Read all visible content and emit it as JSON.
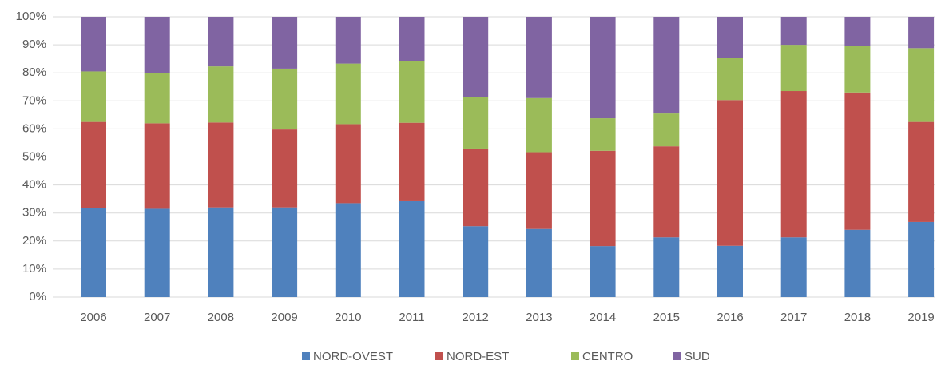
{
  "chart_data": {
    "type": "stacked_bar_100",
    "categories": [
      "2006",
      "2007",
      "2008",
      "2009",
      "2010",
      "2011",
      "2012",
      "2013",
      "2014",
      "2015",
      "2016",
      "2017",
      "2018",
      "2019"
    ],
    "series": [
      {
        "name": "NORD-OVEST",
        "color": "#4f81bd",
        "values": [
          31.8,
          31.5,
          32,
          32,
          33.5,
          34.2,
          25.3,
          24.3,
          18.2,
          21.3,
          18.3,
          21.3,
          24,
          26.8
        ]
      },
      {
        "name": "NORD-EST",
        "color": "#c0504d",
        "values": [
          30.7,
          30.5,
          30.3,
          27.8,
          28.2,
          28,
          27.7,
          27.4,
          34,
          32.5,
          52,
          52.2,
          49,
          35.7
        ]
      },
      {
        "name": "CENTRO",
        "color": "#9bbb59",
        "values": [
          18,
          18,
          20,
          21.7,
          21.6,
          22.1,
          18.3,
          19.3,
          11.6,
          11.7,
          15,
          16.5,
          16.5,
          26.3
        ]
      },
      {
        "name": "SUD",
        "color": "#8064a2",
        "values": [
          19.5,
          20,
          17.7,
          18.5,
          16.7,
          15.7,
          28.7,
          29,
          36.2,
          34.5,
          14.7,
          10,
          10.5,
          11.2
        ]
      }
    ],
    "ylim": [
      0,
      100
    ],
    "yticks": [
      {
        "value": 0,
        "label": "0%"
      },
      {
        "value": 10,
        "label": "10%"
      },
      {
        "value": 20,
        "label": "20%"
      },
      {
        "value": 30,
        "label": "30%"
      },
      {
        "value": 40,
        "label": "40%"
      },
      {
        "value": 50,
        "label": "50%"
      },
      {
        "value": 60,
        "label": "60%"
      },
      {
        "value": 70,
        "label": "70%"
      },
      {
        "value": 80,
        "label": "80%"
      },
      {
        "value": 90,
        "label": "90%"
      },
      {
        "value": 100,
        "label": "100%"
      }
    ],
    "grid": true,
    "legend": "bottom"
  }
}
